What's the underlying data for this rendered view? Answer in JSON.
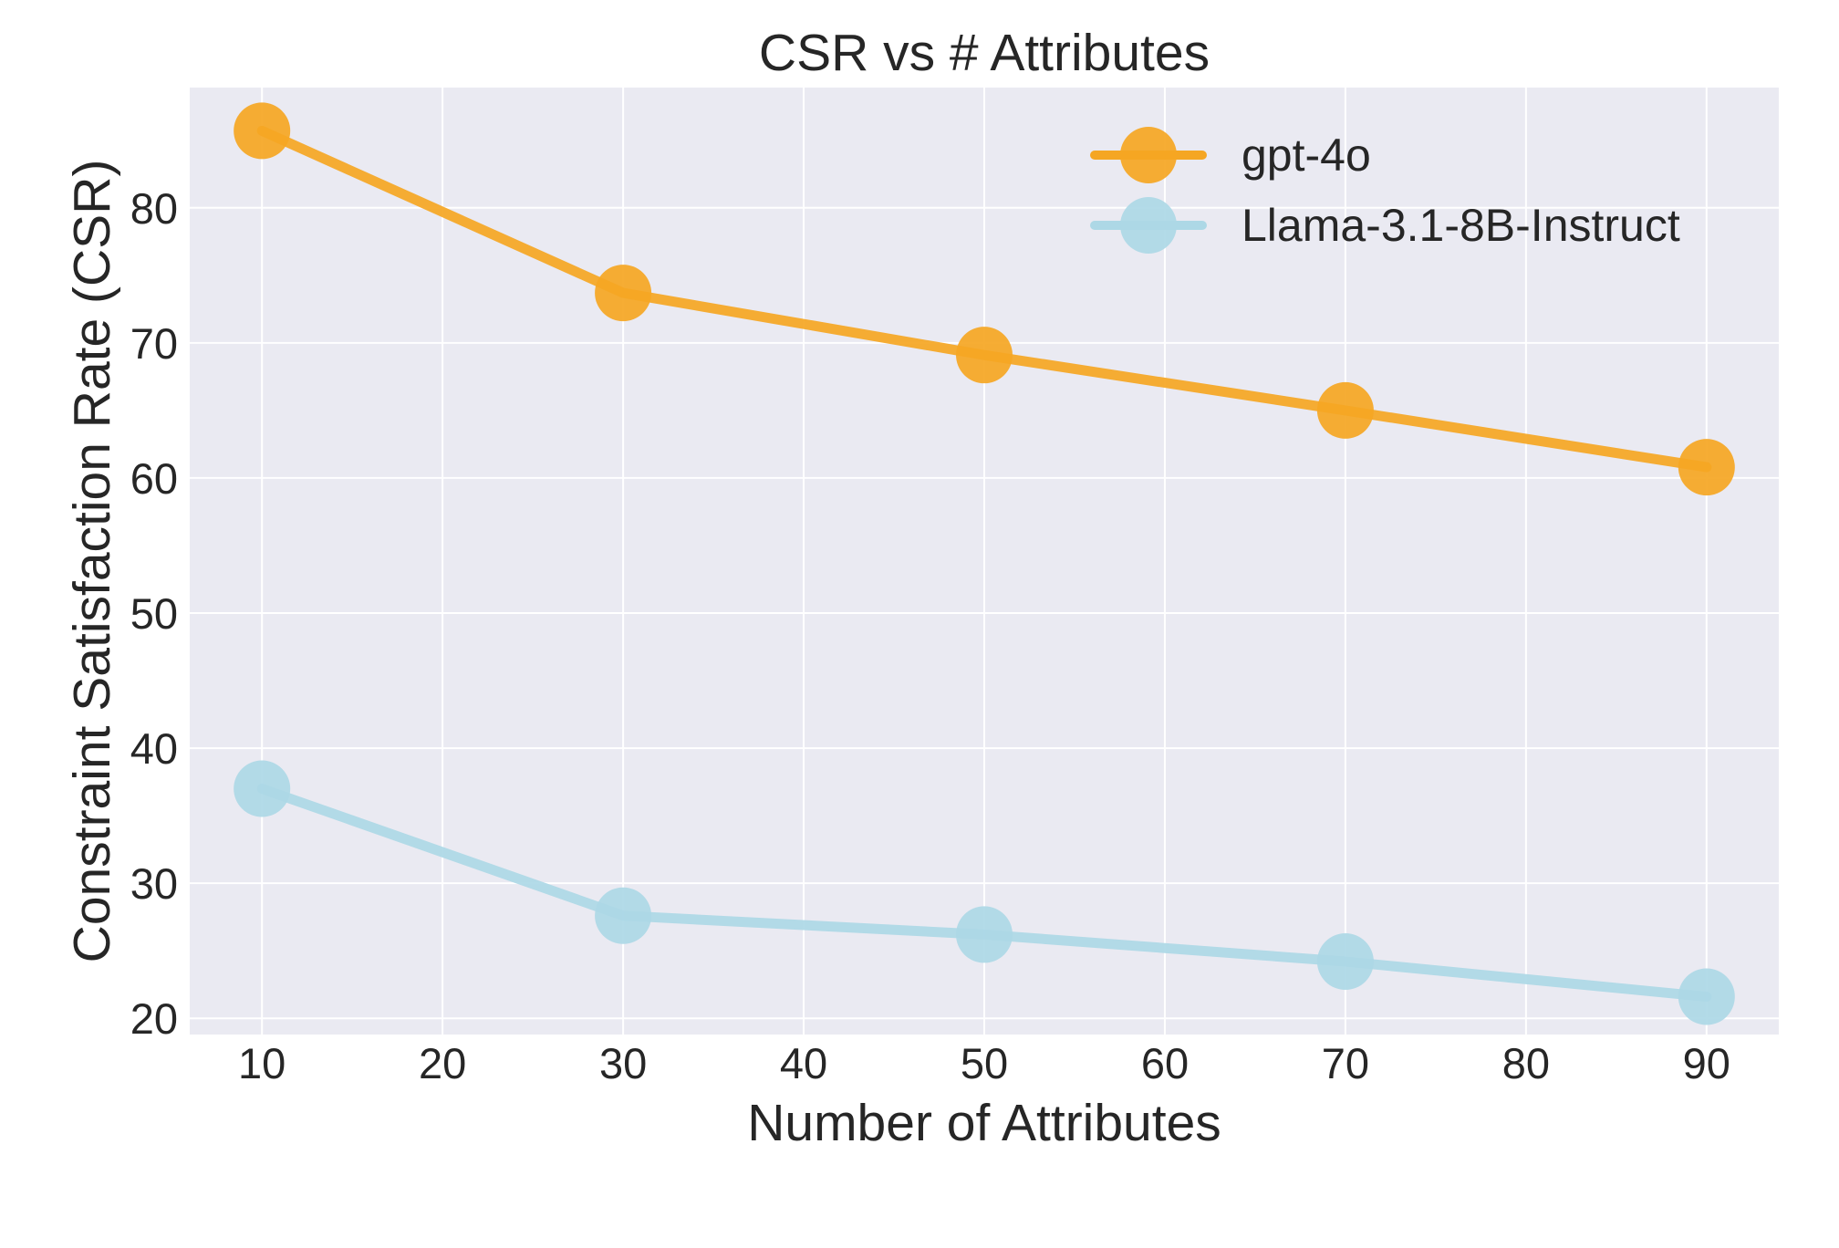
{
  "chart_data": {
    "type": "line",
    "title": "CSR vs # Attributes",
    "xlabel": "Number of Attributes",
    "ylabel": "Constraint Satisfaction Rate (CSR)",
    "x": [
      10,
      30,
      50,
      70,
      90
    ],
    "xlim": [
      6,
      94
    ],
    "ylim": [
      18.8,
      88.9
    ],
    "xticks": [
      10,
      20,
      30,
      40,
      50,
      60,
      70,
      80,
      90
    ],
    "yticks": [
      20,
      30,
      40,
      50,
      60,
      70,
      80
    ],
    "grid": true,
    "legend_position": "top-right",
    "series": [
      {
        "name": "gpt-4o",
        "color": "#f5a623",
        "values": [
          85.7,
          73.7,
          69.1,
          65.0,
          60.8
        ]
      },
      {
        "name": "Llama-3.1-8B-Instruct",
        "color": "#add8e6",
        "values": [
          37.0,
          27.6,
          26.2,
          24.2,
          21.6
        ]
      }
    ]
  }
}
